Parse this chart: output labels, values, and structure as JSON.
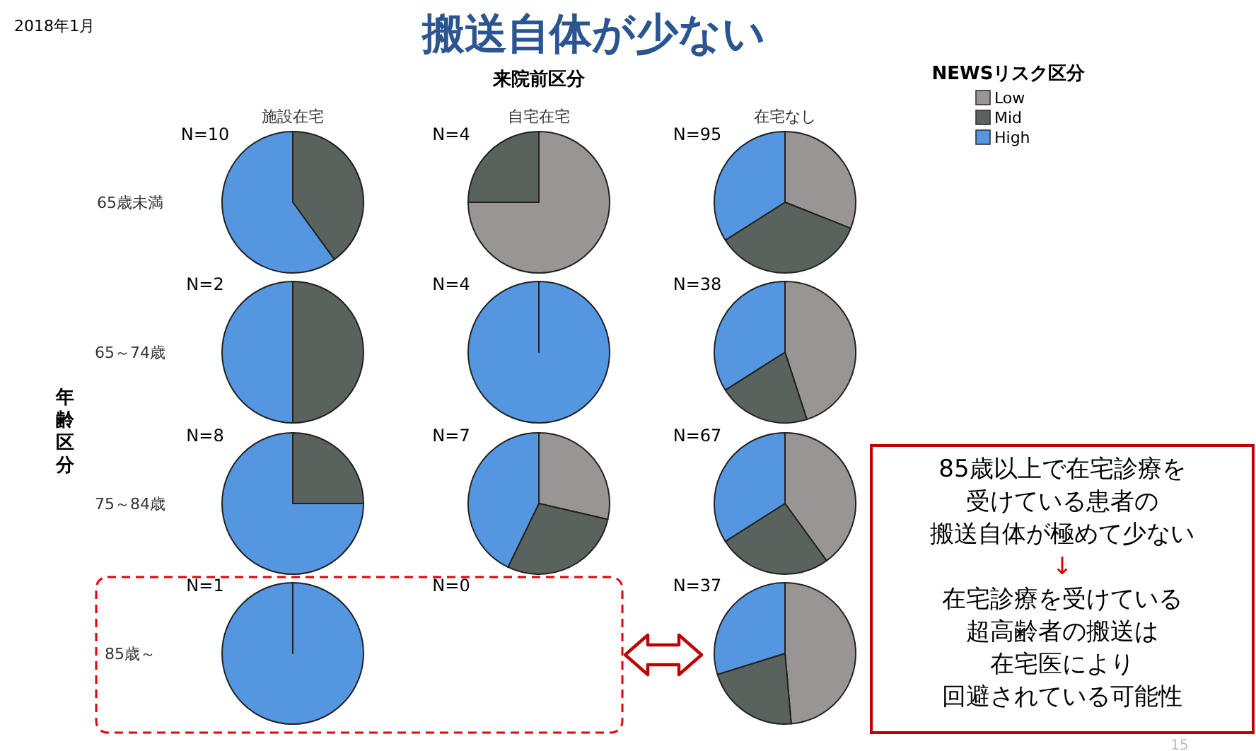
{
  "chart_data": [
    {
      "type": "other",
      "title": "搬送自体が少ない",
      "xlabel": "来院前区分",
      "ylabel": "年齢区分",
      "categories": [
        "施設在宅",
        "自宅在宅",
        "在宅なし"
      ],
      "y_categories": [
        "65歳未満",
        "65～74歳",
        "75～84歳",
        "85歳～"
      ],
      "annotations": [
        "2018年1月",
        "15",
        "85歳以上で在宅診療を",
        "受けている患者の",
        "搬送自体が極めて少ない",
        "↓",
        "在宅診療を受けている",
        "超高齢者の搬送は",
        "在宅医により",
        "回避されている可能性"
      ]
    },
    {
      "type": "pie",
      "title": "N=10",
      "values": [
        40,
        60
      ],
      "colors": [
        "#5a625d",
        "#5596e0"
      ]
    },
    {
      "type": "pie",
      "title": "N=4",
      "values": [
        75,
        25
      ],
      "colors": [
        "#999595",
        "#5a625d"
      ]
    },
    {
      "type": "pie",
      "title": "N=95",
      "categories": [
        "Low",
        "Mid",
        "High"
      ],
      "values": [
        31,
        35,
        34
      ],
      "colors": [
        "#999595",
        "#5a625d",
        "#5596e0"
      ],
      "legend": "top right",
      "legend_title": "NEWSリスク区分"
    },
    {
      "type": "pie",
      "title": "N=2",
      "values": [
        50,
        50
      ],
      "colors": [
        "#5a625d",
        "#5596e0"
      ]
    },
    {
      "type": "pie",
      "title": "N=4",
      "values": [
        100
      ],
      "colors": [
        "#5596e0"
      ]
    },
    {
      "type": "pie",
      "title": "N=38",
      "values": [
        45,
        21,
        34
      ],
      "colors": [
        "#999595",
        "#5a625d",
        "#5596e0"
      ]
    },
    {
      "type": "pie",
      "title": "N=8",
      "values": [
        25,
        75
      ],
      "colors": [
        "#5a625d",
        "#5596e0"
      ]
    },
    {
      "type": "pie",
      "title": "N=7",
      "values": [
        28.6,
        28.6,
        42.8
      ],
      "colors": [
        "#999595",
        "#5a625d",
        "#5596e0"
      ]
    },
    {
      "type": "pie",
      "title": "N=67",
      "values": [
        40,
        26,
        34
      ],
      "colors": [
        "#999595",
        "#5a625d",
        "#5596e0"
      ]
    },
    {
      "type": "pie",
      "title": "N=1",
      "values": [
        100
      ],
      "colors": [
        "#5596e0"
      ]
    },
    {
      "type": "other",
      "title": "N=0"
    },
    {
      "type": "pie",
      "title": "N=37",
      "values": [
        48.6,
        21.6,
        29.8
      ],
      "colors": [
        "#999595",
        "#5a625d",
        "#5596e0"
      ]
    }
  ]
}
